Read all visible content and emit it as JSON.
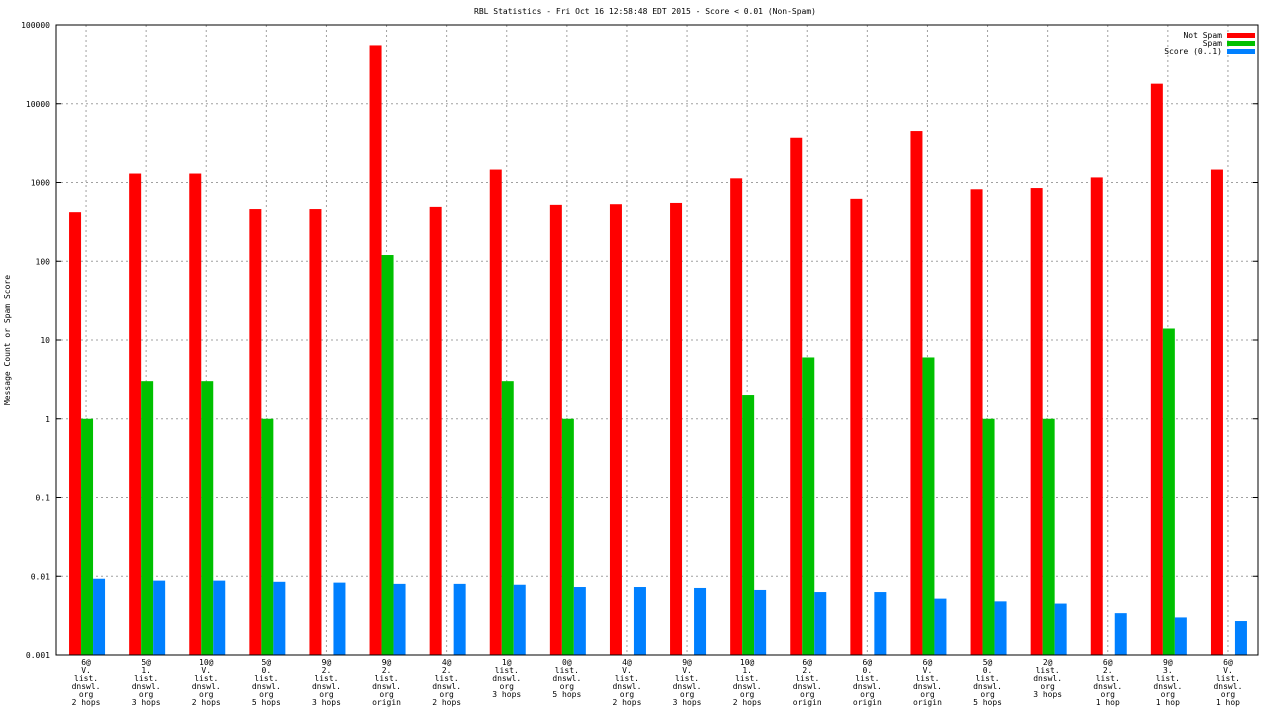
{
  "chart_data": {
    "type": "bar",
    "title": "RBL Statistics - Fri Oct 16 12:58:48 EDT 2015 - Score < 0.01 (Non-Spam)",
    "ylabel": "Message Count or Spam Score",
    "xlabel": "",
    "yscale": "log",
    "ylim": [
      0.001,
      100000
    ],
    "y_ticks": [
      "0.001",
      "0.01",
      "0.1",
      "1",
      "10",
      "100",
      "1000",
      "10000",
      "100000"
    ],
    "grid": true,
    "legend_position": "top-right",
    "categories": [
      [
        "6@",
        "V.",
        "list.",
        "dnswl.",
        "org",
        "2 hops"
      ],
      [
        "5@",
        "1.",
        "list.",
        "dnswl.",
        "org",
        "3 hops"
      ],
      [
        "10@",
        "V.",
        "list.",
        "dnswl.",
        "org",
        "2 hops"
      ],
      [
        "5@",
        "0.",
        "list.",
        "dnswl.",
        "org",
        "5 hops"
      ],
      [
        "9@",
        "2.",
        "list.",
        "dnswl.",
        "org",
        "3 hops"
      ],
      [
        "9@",
        "2.",
        "list.",
        "dnswl.",
        "org",
        "origin"
      ],
      [
        "4@",
        "2.",
        "list.",
        "dnswl.",
        "org",
        "2 hops"
      ],
      [
        "1@",
        "list.",
        "dnswl.",
        "org",
        "3 hops"
      ],
      [
        "0@",
        "list.",
        "dnswl.",
        "org",
        "5 hops"
      ],
      [
        "4@",
        "V.",
        "list.",
        "dnswl.",
        "org",
        "2 hops"
      ],
      [
        "9@",
        "V.",
        "list.",
        "dnswl.",
        "org",
        "3 hops"
      ],
      [
        "10@",
        "1.",
        "list.",
        "dnswl.",
        "org",
        "2 hops"
      ],
      [
        "6@",
        "2.",
        "list.",
        "dnswl.",
        "org",
        "origin"
      ],
      [
        "6@",
        "0.",
        "list.",
        "dnswl.",
        "org",
        "origin"
      ],
      [
        "6@",
        "V.",
        "list.",
        "dnswl.",
        "org",
        "origin"
      ],
      [
        "5@",
        "0.",
        "list.",
        "dnswl.",
        "org",
        "5 hops"
      ],
      [
        "2@",
        "list.",
        "dnswl.",
        "org",
        "3 hops"
      ],
      [
        "6@",
        "2.",
        "list.",
        "dnswl.",
        "org",
        "1 hop"
      ],
      [
        "9@",
        "3.",
        "list.",
        "dnswl.",
        "org",
        "1 hop"
      ],
      [
        "6@",
        "V.",
        "list.",
        "dnswl.",
        "org",
        "1 hop"
      ]
    ],
    "series": [
      {
        "name": "Not Spam",
        "color": "#ff0000",
        "values": [
          420,
          1300,
          1300,
          460,
          460,
          55000,
          490,
          1460,
          520,
          530,
          550,
          1130,
          3700,
          620,
          4500,
          820,
          850,
          1160,
          18000,
          1460
        ]
      },
      {
        "name": "Spam",
        "color": "#00c000",
        "values": [
          1,
          3,
          3,
          1,
          null,
          120,
          null,
          3,
          1,
          null,
          null,
          2,
          6,
          null,
          6,
          1,
          1,
          null,
          14,
          null
        ]
      },
      {
        "name": "Score (0..1)",
        "color": "#0080ff",
        "values": [
          0.0093,
          0.0088,
          0.0088,
          0.0085,
          0.0083,
          0.008,
          0.008,
          0.0078,
          0.0073,
          0.0073,
          0.0071,
          0.0067,
          0.0063,
          0.0063,
          0.0052,
          0.0048,
          0.0045,
          0.0034,
          0.003,
          0.0027
        ]
      }
    ]
  }
}
